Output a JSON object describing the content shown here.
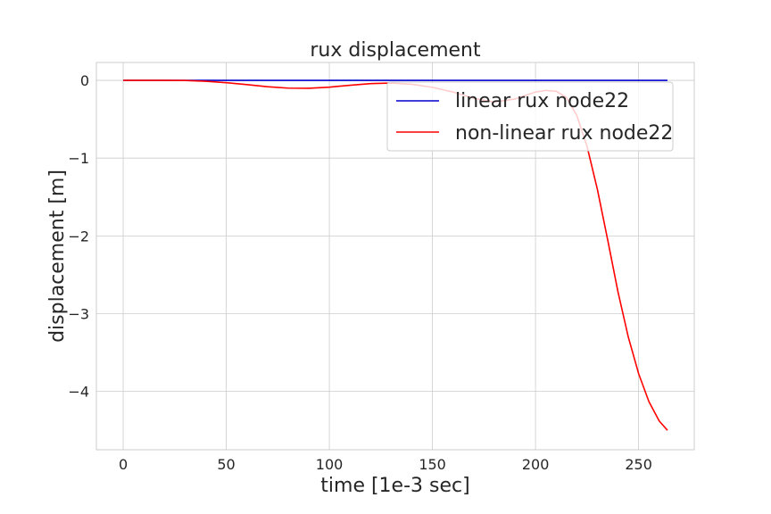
{
  "chart_data": {
    "type": "line",
    "title": "rux displacement",
    "xlabel": "time [1e-3 sec]",
    "ylabel": "displacement [m]",
    "xlim": [
      -13,
      277
    ],
    "ylim": [
      -4.75,
      0.23
    ],
    "xticks": [
      0,
      50,
      100,
      150,
      200,
      250
    ],
    "yticks": [
      0,
      -1,
      -2,
      -3,
      -4
    ],
    "xtick_labels": [
      "0",
      "50",
      "100",
      "150",
      "200",
      "250"
    ],
    "ytick_labels": [
      "0",
      "−1",
      "−2",
      "−3",
      "−4"
    ],
    "grid": true,
    "legend": {
      "placement": "upper-right"
    },
    "series": [
      {
        "name": "linear rux node22",
        "color": "#0000cc",
        "x": [
          0,
          264
        ],
        "y": [
          0,
          0
        ]
      },
      {
        "name": "non-linear rux node22",
        "color": "#ff0000",
        "x": [
          0,
          10,
          20,
          30,
          40,
          50,
          60,
          70,
          80,
          90,
          100,
          110,
          120,
          130,
          140,
          150,
          160,
          170,
          180,
          190,
          200,
          205,
          210,
          215,
          220,
          225,
          230,
          235,
          240,
          245,
          250,
          255,
          260,
          264
        ],
        "y": [
          0,
          0.0,
          0.0,
          -0.002,
          -0.012,
          -0.03,
          -0.055,
          -0.082,
          -0.1,
          -0.102,
          -0.088,
          -0.063,
          -0.042,
          -0.035,
          -0.05,
          -0.09,
          -0.15,
          -0.23,
          -0.28,
          -0.24,
          -0.15,
          -0.13,
          -0.14,
          -0.22,
          -0.45,
          -0.85,
          -1.4,
          -2.05,
          -2.72,
          -3.3,
          -3.77,
          -4.13,
          -4.38,
          -4.5
        ]
      }
    ]
  }
}
